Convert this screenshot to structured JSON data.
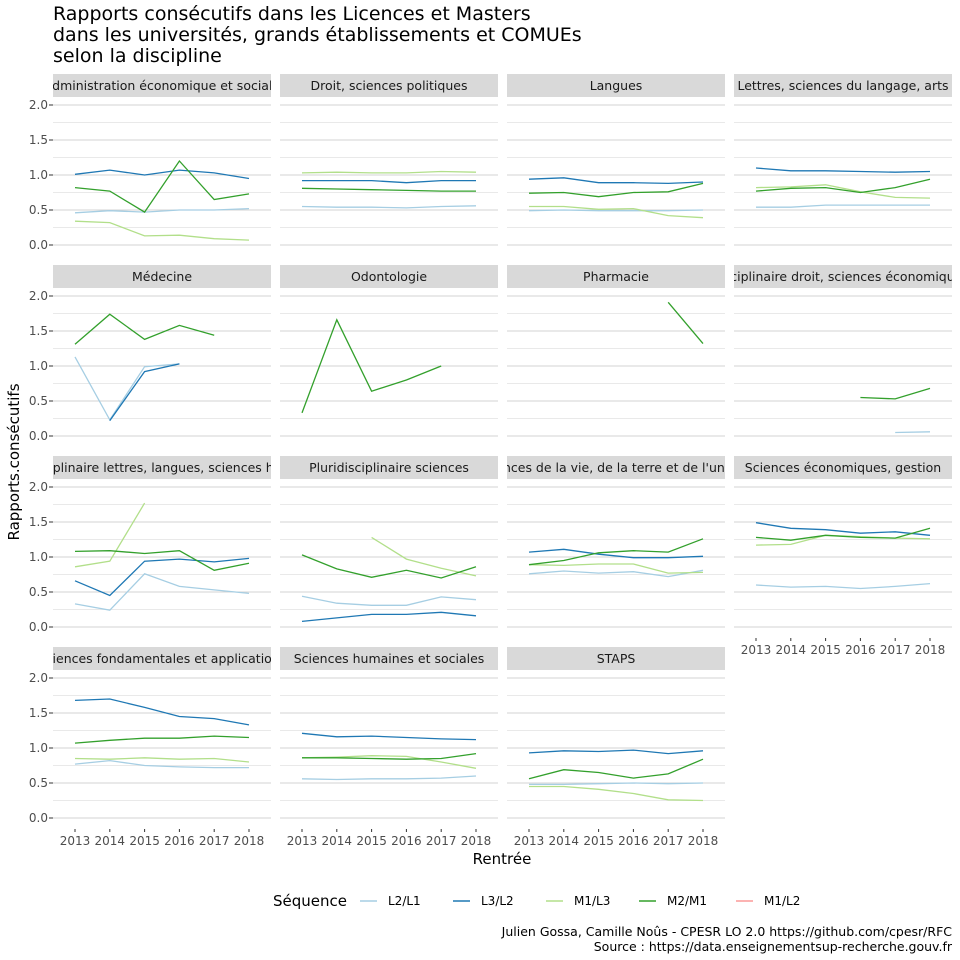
{
  "title_lines": [
    "Rapports consécutifs dans les Licences et Masters",
    "dans les universités, grands établissements et COMUEs",
    "selon la discipline"
  ],
  "caption_lines": [
    "Julien Gossa, Camille Noûs - CPESR LO 2.0 https://github.com/cpesr/RFC",
    "Source : https://data.enseignementsup-recherche.gouv.fr"
  ],
  "colors": {
    "L2/L1": "#a6cee3",
    "L3/L2": "#1f78b4",
    "M1/L3": "#b2df8a",
    "M2/M1": "#33a02c",
    "M1/L2": "#fb9a99",
    "strip_bg": "#d9d9d9",
    "grid": "#d3d3d3"
  },
  "chart_data": {
    "type": "line",
    "facet_layout": "facet_wrap, 4 columns",
    "xlabel": "Rentrée",
    "ylabel": "Rapports.consécutifs",
    "x_ticks": [
      2013,
      2014,
      2015,
      2016,
      2017,
      2018
    ],
    "ylim": [
      0,
      2
    ],
    "y_ticks": [
      "0.0",
      "0.5",
      "1.0",
      "1.5",
      "2.0"
    ],
    "legend": {
      "title": "Séquence",
      "position": "bottom",
      "entries": [
        "L2/L1",
        "L3/L2",
        "M1/L3",
        "M2/M1",
        "M1/L2"
      ]
    },
    "panels": [
      {
        "title": "Administration économique et sociale",
        "series": [
          {
            "name": "L2/L1",
            "values": [
              0.46,
              0.49,
              0.47,
              0.5,
              0.5,
              0.52
            ]
          },
          {
            "name": "L3/L2",
            "values": [
              1.01,
              1.07,
              1.0,
              1.07,
              1.03,
              0.95
            ]
          },
          {
            "name": "M1/L3",
            "values": [
              0.34,
              0.32,
              0.13,
              0.14,
              0.09,
              0.07
            ]
          },
          {
            "name": "M2/M1",
            "values": [
              0.82,
              0.77,
              0.47,
              1.2,
              0.65,
              0.73
            ]
          }
        ]
      },
      {
        "title": "Droit, sciences politiques",
        "series": [
          {
            "name": "L2/L1",
            "values": [
              0.55,
              0.54,
              0.54,
              0.53,
              0.55,
              0.56
            ]
          },
          {
            "name": "L3/L2",
            "values": [
              0.92,
              0.92,
              0.92,
              0.89,
              0.92,
              0.92
            ]
          },
          {
            "name": "M1/L3",
            "values": [
              1.03,
              1.04,
              1.03,
              1.03,
              1.05,
              1.04
            ]
          },
          {
            "name": "M2/M1",
            "values": [
              0.81,
              0.8,
              0.79,
              0.78,
              0.77,
              0.77
            ]
          }
        ]
      },
      {
        "title": "Langues",
        "series": [
          {
            "name": "L2/L1",
            "values": [
              0.49,
              0.5,
              0.49,
              0.49,
              0.49,
              0.5
            ]
          },
          {
            "name": "L3/L2",
            "values": [
              0.94,
              0.96,
              0.89,
              0.89,
              0.88,
              0.9
            ]
          },
          {
            "name": "M1/L3",
            "values": [
              0.55,
              0.55,
              0.51,
              0.52,
              0.42,
              0.39
            ]
          },
          {
            "name": "M2/M1",
            "values": [
              0.74,
              0.75,
              0.69,
              0.75,
              0.76,
              0.88
            ]
          }
        ]
      },
      {
        "title": "Lettres, sciences du langage, arts",
        "series": [
          {
            "name": "L2/L1",
            "values": [
              0.54,
              0.54,
              0.57,
              0.57,
              0.57,
              0.57
            ]
          },
          {
            "name": "L3/L2",
            "values": [
              1.1,
              1.06,
              1.06,
              1.05,
              1.04,
              1.05
            ]
          },
          {
            "name": "M1/L3",
            "values": [
              0.82,
              0.83,
              0.86,
              0.76,
              0.68,
              0.67
            ]
          },
          {
            "name": "M2/M1",
            "values": [
              0.77,
              0.81,
              0.82,
              0.75,
              0.82,
              0.94
            ]
          }
        ]
      },
      {
        "title": "Médecine",
        "series": [
          {
            "name": "L2/L1",
            "values": [
              1.13,
              0.23,
              0.99,
              1.03,
              null,
              null
            ]
          },
          {
            "name": "L3/L2",
            "values": [
              null,
              0.22,
              0.92,
              1.03,
              null,
              null
            ]
          },
          {
            "name": "M2/M1",
            "values": [
              1.31,
              1.74,
              1.38,
              1.58,
              1.44,
              null
            ]
          }
        ]
      },
      {
        "title": "Odontologie",
        "series": [
          {
            "name": "M2/M1",
            "values": [
              0.33,
              1.66,
              0.64,
              0.8,
              1.0,
              null
            ]
          }
        ]
      },
      {
        "title": "Pharmacie",
        "series": [
          {
            "name": "M2/M1",
            "values": [
              null,
              null,
              null,
              null,
              1.91,
              1.32
            ]
          }
        ]
      },
      {
        "title": "Pluridisciplinaire droit, sciences économiques, AES",
        "series": [
          {
            "name": "L2/L1",
            "values": [
              null,
              null,
              null,
              null,
              0.05,
              0.06
            ]
          },
          {
            "name": "M2/M1",
            "values": [
              null,
              null,
              null,
              0.55,
              0.53,
              0.68
            ]
          }
        ]
      },
      {
        "title": "Pluridisciplinaire lettres, langues, sciences humaines",
        "series": [
          {
            "name": "L2/L1",
            "values": [
              0.33,
              0.24,
              0.76,
              0.58,
              0.53,
              0.48
            ]
          },
          {
            "name": "L3/L2",
            "values": [
              0.66,
              0.45,
              0.94,
              0.97,
              0.93,
              0.98
            ]
          },
          {
            "name": "M1/L3",
            "values": [
              0.86,
              0.94,
              1.77,
              null,
              null,
              null
            ]
          },
          {
            "name": "M2/M1",
            "values": [
              1.08,
              1.09,
              1.05,
              1.09,
              0.81,
              0.91
            ]
          }
        ]
      },
      {
        "title": "Pluridisciplinaire sciences",
        "series": [
          {
            "name": "L2/L1",
            "values": [
              0.44,
              0.34,
              0.31,
              0.31,
              0.43,
              0.39
            ]
          },
          {
            "name": "L3/L2",
            "values": [
              0.08,
              0.13,
              0.18,
              0.18,
              0.21,
              0.16
            ]
          },
          {
            "name": "M1/L3",
            "values": [
              null,
              null,
              1.28,
              0.97,
              0.84,
              0.73
            ]
          },
          {
            "name": "M2/M1",
            "values": [
              1.03,
              0.83,
              0.71,
              0.81,
              0.7,
              0.86
            ]
          }
        ]
      },
      {
        "title": "Sciences de la vie, de la terre et de l'univers",
        "series": [
          {
            "name": "L2/L1",
            "values": [
              0.76,
              0.8,
              0.77,
              0.79,
              0.72,
              0.81
            ]
          },
          {
            "name": "L3/L2",
            "values": [
              1.07,
              1.11,
              1.04,
              0.99,
              0.99,
              1.01
            ]
          },
          {
            "name": "M1/L3",
            "values": [
              0.89,
              0.88,
              0.9,
              0.9,
              0.77,
              0.78
            ]
          },
          {
            "name": "M2/M1",
            "values": [
              0.89,
              0.95,
              1.06,
              1.09,
              1.07,
              1.26
            ]
          }
        ]
      },
      {
        "title": "Sciences économiques, gestion",
        "series": [
          {
            "name": "L2/L1",
            "values": [
              0.6,
              0.57,
              0.58,
              0.55,
              0.58,
              0.62
            ]
          },
          {
            "name": "L3/L2",
            "values": [
              1.49,
              1.41,
              1.39,
              1.34,
              1.36,
              1.31
            ]
          },
          {
            "name": "M1/L3",
            "values": [
              1.17,
              1.18,
              1.31,
              1.29,
              1.27,
              1.26
            ]
          },
          {
            "name": "M2/M1",
            "values": [
              1.28,
              1.24,
              1.31,
              1.28,
              1.27,
              1.41
            ]
          }
        ]
      },
      {
        "title": "Sciences fondamentales et applications",
        "series": [
          {
            "name": "L2/L1",
            "values": [
              0.77,
              0.82,
              0.75,
              0.73,
              0.72,
              0.72
            ]
          },
          {
            "name": "L3/L2",
            "values": [
              1.68,
              1.7,
              1.58,
              1.45,
              1.42,
              1.33
            ]
          },
          {
            "name": "M1/L3",
            "values": [
              0.85,
              0.84,
              0.86,
              0.84,
              0.85,
              0.8
            ]
          },
          {
            "name": "M2/M1",
            "values": [
              1.07,
              1.11,
              1.14,
              1.14,
              1.17,
              1.15
            ]
          }
        ]
      },
      {
        "title": "Sciences humaines et sociales",
        "series": [
          {
            "name": "L2/L1",
            "values": [
              0.56,
              0.55,
              0.56,
              0.56,
              0.57,
              0.6
            ]
          },
          {
            "name": "L3/L2",
            "values": [
              1.21,
              1.16,
              1.17,
              1.15,
              1.13,
              1.12
            ]
          },
          {
            "name": "M1/L3",
            "values": [
              0.86,
              0.87,
              0.89,
              0.88,
              0.8,
              0.71
            ]
          },
          {
            "name": "M2/M1",
            "values": [
              0.86,
              0.86,
              0.85,
              0.84,
              0.85,
              0.92
            ]
          }
        ]
      },
      {
        "title": "STAPS",
        "series": [
          {
            "name": "L2/L1",
            "values": [
              0.48,
              0.48,
              0.49,
              0.5,
              0.49,
              0.5
            ]
          },
          {
            "name": "L3/L2",
            "values": [
              0.93,
              0.96,
              0.95,
              0.97,
              0.92,
              0.96
            ]
          },
          {
            "name": "M1/L3",
            "values": [
              0.45,
              0.45,
              0.41,
              0.35,
              0.26,
              0.25
            ]
          },
          {
            "name": "M2/M1",
            "values": [
              0.56,
              0.69,
              0.65,
              0.57,
              0.63,
              0.84
            ]
          }
        ]
      }
    ]
  }
}
